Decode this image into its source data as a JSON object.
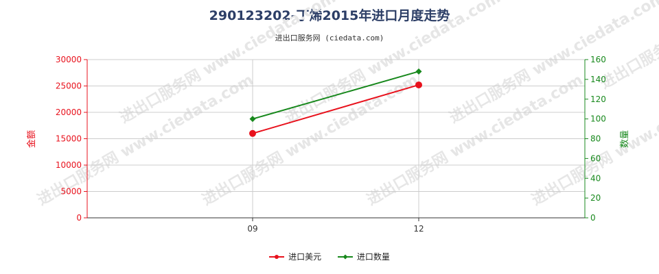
{
  "title": "290123202-丁烯2015年进口月度走势",
  "subtitle": "进出口服务网 (ciedata.com)",
  "watermark": "进出口服务网 www.ciedata.com",
  "colors": {
    "left_axis": "#e8111c",
    "right_axis": "#17881c",
    "usd_series": "#e8111c",
    "qty_series": "#17881c",
    "grid": "#cccccc",
    "title": "#2c3e66"
  },
  "chart_data": {
    "type": "line",
    "categories": [
      "09",
      "12"
    ],
    "y_left": {
      "label": "金额",
      "ylim": [
        0,
        30000
      ],
      "ticks": [
        0,
        5000,
        10000,
        15000,
        20000,
        25000,
        30000
      ]
    },
    "y_right": {
      "label": "数量",
      "ylim": [
        0,
        160
      ],
      "ticks": [
        0,
        20,
        40,
        60,
        80,
        100,
        120,
        140,
        160
      ]
    },
    "series": [
      {
        "name": "进口美元",
        "axis": "left",
        "values": [
          16000,
          25200
        ],
        "marker": "circle"
      },
      {
        "name": "进口数量",
        "axis": "right",
        "values": [
          100,
          148
        ],
        "marker": "diamond"
      }
    ],
    "grid": true,
    "legend_position": "bottom"
  }
}
